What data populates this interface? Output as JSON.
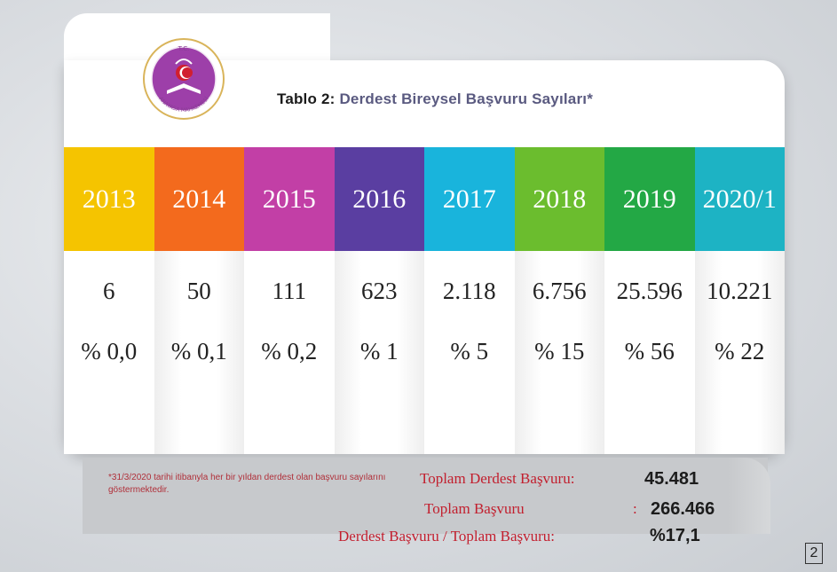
{
  "logo": {
    "top_text": "T.C.",
    "bottom_text": "ANAYASA MAHKEMESİ"
  },
  "title": {
    "prefix": "Tablo 2:",
    "main": "Derdest Bireysel Başvuru Sayıları*"
  },
  "columns": [
    {
      "year": "2013",
      "count": "6",
      "percent": "% 0,0",
      "color": "#f5c400"
    },
    {
      "year": "2014",
      "count": "50",
      "percent": "% 0,1",
      "color": "#f36a1d"
    },
    {
      "year": "2015",
      "count": "111",
      "percent": "% 0,2",
      "color": "#c23fa6"
    },
    {
      "year": "2016",
      "count": "623",
      "percent": "% 1",
      "color": "#5a3ea1"
    },
    {
      "year": "2017",
      "count": "2.118",
      "percent": "% 5",
      "color": "#19b4dc"
    },
    {
      "year": "2018",
      "count": "6.756",
      "percent": "% 15",
      "color": "#6bbd2e"
    },
    {
      "year": "2019",
      "count": "25.596",
      "percent": "% 56",
      "color": "#23a845"
    },
    {
      "year": "2020/1",
      "count": "10.221",
      "percent": "% 22",
      "color": "#1db3c4"
    }
  ],
  "footer": {
    "note": "*31/3/2020 tarihi itibanyla her bir yıldan derdest olan başvuru sayılarını göstermektedir.",
    "total_pending_label": "Toplam Derdest Başvuru:",
    "total_pending_value": "45.481",
    "total_label": "Toplam Başvuru",
    "total_colon": ":",
    "total_value": "266.466",
    "ratio_label": "Derdest Başvuru / Toplam Başvuru:",
    "ratio_value": "%17,1"
  },
  "page_number": "2"
}
